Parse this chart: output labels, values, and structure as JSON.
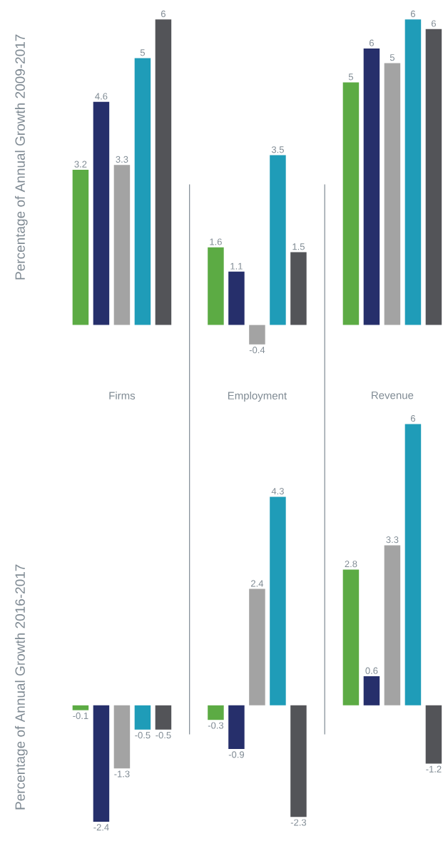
{
  "chart_data": [
    {
      "type": "bar",
      "ylabel": "Percentage of Annual Growth 2009-2017",
      "categories": [
        "Firms",
        "Employment",
        "Revenue"
      ],
      "tick_labels": "x",
      "series": [
        {
          "color": "#5cab44",
          "values": [
            3.2,
            1.6,
            5.0
          ],
          "value_labels": [
            "3.2",
            "1.6",
            "5"
          ]
        },
        {
          "color": "#262f6b",
          "values": [
            4.6,
            1.1,
            5.7
          ],
          "value_labels": [
            "4.6",
            "1.1",
            "6"
          ]
        },
        {
          "color": "#a3a3a3",
          "values": [
            3.3,
            -0.4,
            5.4
          ],
          "value_labels": [
            "3.3",
            "-0.4",
            "5"
          ]
        },
        {
          "color": "#1f9cb8",
          "values": [
            5.5,
            3.5,
            6.3
          ],
          "value_labels": [
            "5",
            "3.5",
            "6"
          ]
        },
        {
          "color": "#535458",
          "values": [
            6.3,
            1.5,
            6.1
          ],
          "value_labels": [
            "6",
            "1.5",
            "6"
          ]
        }
      ]
    },
    {
      "type": "bar",
      "ylabel": "Percentage of Annual Growth 2016-2017",
      "categories": [
        null,
        null,
        null
      ],
      "tick_labels": false,
      "series": [
        {
          "color": "#5cab44",
          "values": [
            -0.1,
            -0.3,
            2.8
          ],
          "value_labels": [
            "-0.1",
            "-0.3",
            "2.8"
          ]
        },
        {
          "color": "#262f6b",
          "values": [
            -2.4,
            -0.9,
            0.6
          ],
          "value_labels": [
            "-2.4",
            "-0.9",
            "0.6"
          ]
        },
        {
          "color": "#a3a3a3",
          "values": [
            -1.3,
            2.4,
            3.3
          ],
          "value_labels": [
            "-1.3",
            "2.4",
            "3.3"
          ]
        },
        {
          "color": "#1f9cb8",
          "values": [
            -0.5,
            4.3,
            5.8
          ],
          "value_labels": [
            "-0.5",
            "4.3",
            "6"
          ]
        },
        {
          "color": "#535458",
          "values": [
            -0.5,
            -2.3,
            -1.2
          ],
          "value_labels": [
            "-0.5",
            "-2.3",
            "-1.2"
          ]
        }
      ]
    }
  ]
}
